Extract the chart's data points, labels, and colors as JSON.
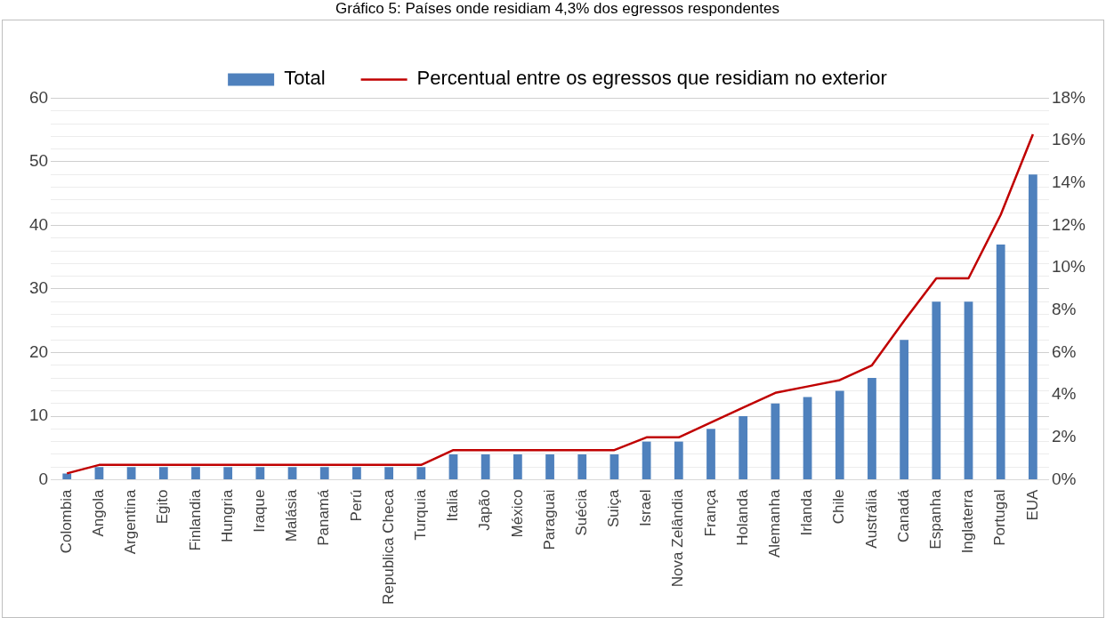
{
  "chart_data": {
    "type": "bar",
    "title": "Gráfico 5: Países onde residiam 4,3% dos egressos respondentes",
    "categories": [
      "Colombia",
      "Angola",
      "Argentina",
      "Egito",
      "Finlandia",
      "Hungria",
      "Iraque",
      "Malásia",
      "Panamá",
      "Perú",
      "Republica Checa",
      "Turquia",
      "Italia",
      "Japão",
      "México",
      "Paraguai",
      "Suécia",
      "Suiça",
      "Israel",
      "Nova Zelândia",
      "França",
      "Holanda",
      "Alemanha",
      "Irlanda",
      "Chile",
      "Austrália",
      "Canadá",
      "Espanha",
      "Inglaterra",
      "Portugal",
      "EUA"
    ],
    "series": [
      {
        "name": "Total",
        "color": "#4f81bd",
        "values": [
          1,
          2,
          2,
          2,
          2,
          2,
          2,
          2,
          2,
          2,
          2,
          2,
          4,
          4,
          4,
          4,
          4,
          4,
          6,
          6,
          8,
          10,
          12,
          13,
          14,
          16,
          22,
          28,
          28,
          37,
          48
        ]
      },
      {
        "name": "Percentual entre os egressos que residiam no exterior",
        "type": "line",
        "axis": "y2",
        "color": "#c00000",
        "values": [
          0.3,
          0.7,
          0.7,
          0.7,
          0.7,
          0.7,
          0.7,
          0.7,
          0.7,
          0.7,
          0.7,
          0.7,
          1.4,
          1.4,
          1.4,
          1.4,
          1.4,
          1.4,
          2.0,
          2.0,
          2.7,
          3.4,
          4.1,
          4.4,
          4.7,
          5.4,
          7.5,
          9.5,
          9.5,
          12.5,
          16.3
        ]
      }
    ],
    "ylim": [
      0,
      60
    ],
    "yticks": [
      0,
      {
        "value": 2,
        "label": null
      },
      {
        "value": 4,
        "label": null
      },
      {
        "value": 6,
        "label": null
      },
      {
        "value": 8,
        "label": null
      },
      10,
      {
        "value": 12,
        "label": null
      },
      {
        "value": 14,
        "label": null
      },
      {
        "value": 16,
        "label": null
      },
      {
        "value": 18,
        "label": null
      },
      20,
      {
        "value": 22,
        "label": null
      },
      {
        "value": 24,
        "label": null
      },
      {
        "value": 26,
        "label": null
      },
      {
        "value": 28,
        "label": null
      },
      30,
      {
        "value": 32,
        "label": null
      },
      {
        "value": 34,
        "label": null
      },
      {
        "value": 36,
        "label": null
      },
      {
        "value": 38,
        "label": null
      },
      40,
      {
        "value": 42,
        "label": null
      },
      {
        "value": 44,
        "label": null
      },
      {
        "value": 46,
        "label": null
      },
      {
        "value": 48,
        "label": null
      },
      50,
      {
        "value": 52,
        "label": null
      },
      {
        "value": 54,
        "label": null
      },
      {
        "value": 56,
        "label": null
      },
      {
        "value": 58,
        "label": null
      },
      60
    ],
    "y2lim": [
      0,
      18
    ],
    "y2ticks": [
      {
        "value": 0,
        "label": "0%"
      },
      {
        "value": 2,
        "label": "2%"
      },
      {
        "value": 4,
        "label": "4%"
      },
      {
        "value": 6,
        "label": "6%"
      },
      {
        "value": 8,
        "label": "8%"
      },
      {
        "value": 10,
        "label": "10%"
      },
      {
        "value": 12,
        "label": "12%"
      },
      {
        "value": 14,
        "label": "14%"
      },
      {
        "value": 16,
        "label": "16%"
      },
      {
        "value": 18,
        "label": "18%"
      }
    ],
    "grid": "y",
    "legend": "top",
    "marker": "none",
    "line_style": "solid"
  }
}
